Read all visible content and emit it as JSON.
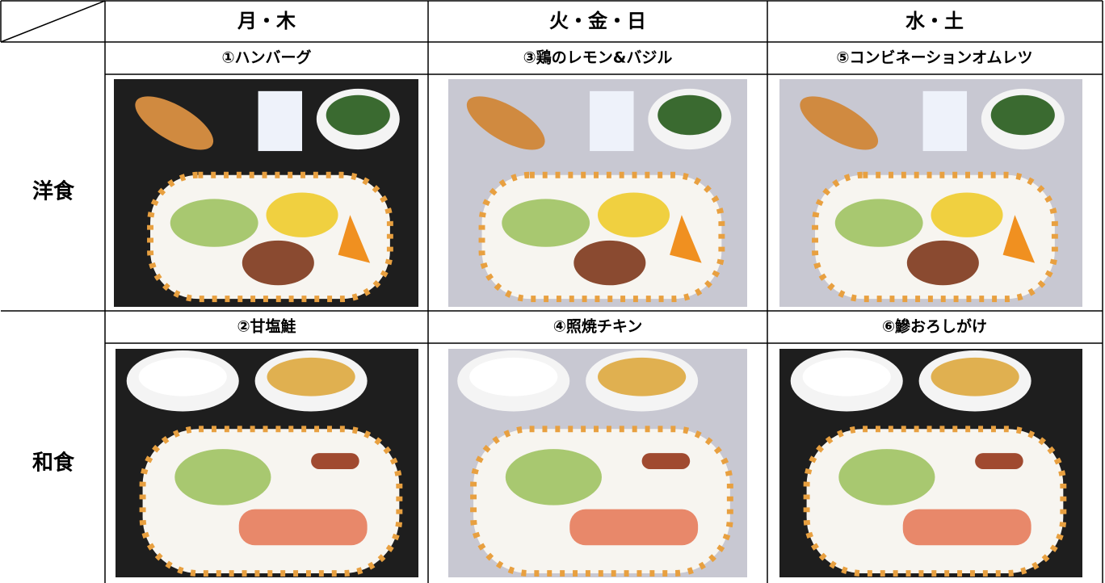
{
  "header": {
    "columns": [
      "月・木",
      "火・金・日",
      "水・土"
    ]
  },
  "rows": [
    {
      "label": "洋食",
      "dishes": [
        "①ハンバーグ",
        "③鶏のレモン&バジル",
        "⑤コンビネーションオムレツ"
      ]
    },
    {
      "label": "和食",
      "dishes": [
        "②甘塩鮭",
        "④照焼チキン",
        "⑥鰺おろしがけ"
      ]
    }
  ]
}
